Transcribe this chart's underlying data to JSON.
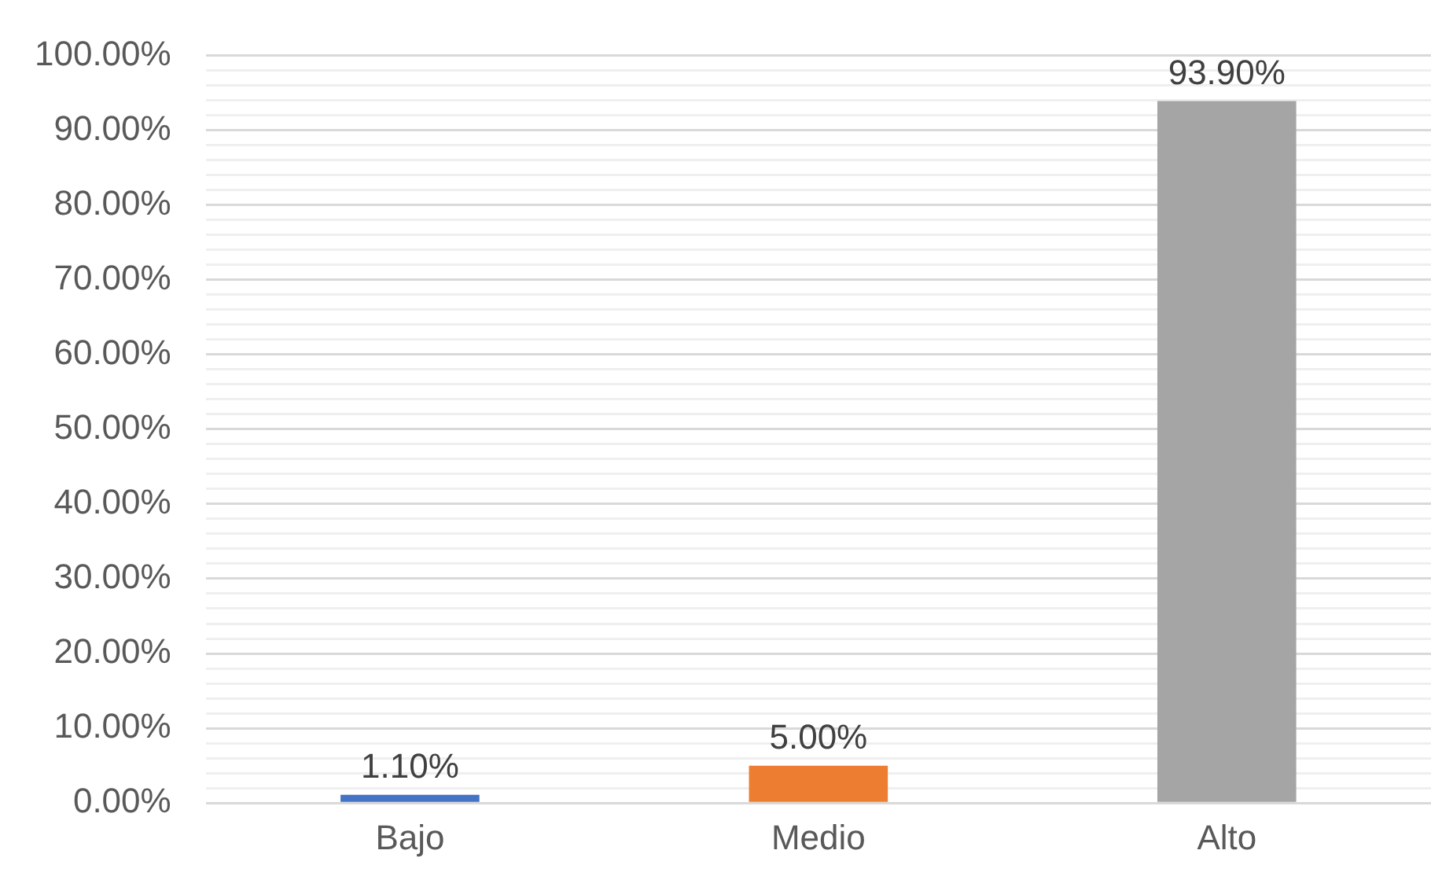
{
  "chart_data": {
    "type": "bar",
    "categories": [
      "Bajo",
      "Medio",
      "Alto"
    ],
    "values": [
      1.1,
      5.0,
      93.9
    ],
    "colors": [
      "#4472c4",
      "#ed7d31",
      "#a5a5a5"
    ],
    "ylim": [
      0,
      100
    ],
    "yticks": [
      {
        "value": 0,
        "label": "0.00%"
      },
      {
        "value": 2,
        "label": null
      },
      {
        "value": 4,
        "label": null
      },
      {
        "value": 6,
        "label": null
      },
      {
        "value": 8,
        "label": null
      },
      {
        "value": 10,
        "label": "10.00%"
      },
      {
        "value": 12,
        "label": null
      },
      {
        "value": 14,
        "label": null
      },
      {
        "value": 16,
        "label": null
      },
      {
        "value": 18,
        "label": null
      },
      {
        "value": 20,
        "label": "20.00%"
      },
      {
        "value": 22,
        "label": null
      },
      {
        "value": 24,
        "label": null
      },
      {
        "value": 26,
        "label": null
      },
      {
        "value": 28,
        "label": null
      },
      {
        "value": 30,
        "label": "30.00%"
      },
      {
        "value": 32,
        "label": null
      },
      {
        "value": 34,
        "label": null
      },
      {
        "value": 36,
        "label": null
      },
      {
        "value": 38,
        "label": null
      },
      {
        "value": 40,
        "label": "40.00%"
      },
      {
        "value": 42,
        "label": null
      },
      {
        "value": 44,
        "label": null
      },
      {
        "value": 46,
        "label": null
      },
      {
        "value": 48,
        "label": null
      },
      {
        "value": 50,
        "label": "50.00%"
      },
      {
        "value": 52,
        "label": null
      },
      {
        "value": 54,
        "label": null
      },
      {
        "value": 56,
        "label": null
      },
      {
        "value": 58,
        "label": null
      },
      {
        "value": 60,
        "label": "60.00%"
      },
      {
        "value": 62,
        "label": null
      },
      {
        "value": 64,
        "label": null
      },
      {
        "value": 66,
        "label": null
      },
      {
        "value": 68,
        "label": null
      },
      {
        "value": 70,
        "label": "70.00%"
      },
      {
        "value": 72,
        "label": null
      },
      {
        "value": 74,
        "label": null
      },
      {
        "value": 76,
        "label": null
      },
      {
        "value": 78,
        "label": null
      },
      {
        "value": 80,
        "label": "80.00%"
      },
      {
        "value": 82,
        "label": null
      },
      {
        "value": 84,
        "label": null
      },
      {
        "value": 86,
        "label": null
      },
      {
        "value": 88,
        "label": null
      },
      {
        "value": 90,
        "label": "90.00%"
      },
      {
        "value": 92,
        "label": null
      },
      {
        "value": 94,
        "label": null
      },
      {
        "value": 96,
        "label": null
      },
      {
        "value": 98,
        "label": null
      },
      {
        "value": 100,
        "label": "100.00%"
      }
    ],
    "value_labels": [
      "1.10%",
      "5.00%",
      "93.90%"
    ],
    "grid": "y",
    "legend": false
  }
}
